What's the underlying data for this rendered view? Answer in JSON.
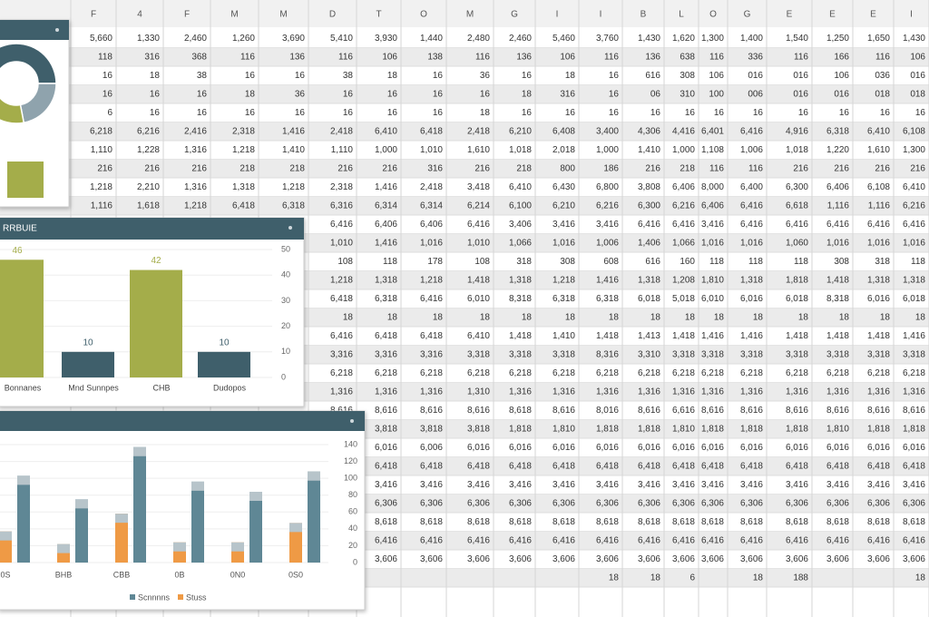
{
  "sheet": {
    "columns": [
      "F",
      "4",
      "F",
      "M",
      "M",
      "D",
      "T",
      "O",
      "M",
      "G",
      "I",
      "I",
      "B",
      "L",
      "O",
      "G",
      "E",
      "E",
      "E",
      "I"
    ],
    "rows": [
      [
        "5,660",
        "1,330",
        "2,460",
        "1,260",
        "3,690",
        "5,410",
        "3,930",
        "1,440",
        "2,480",
        "2,460",
        "5,460",
        "3,760",
        "1,430",
        "1,620",
        "1,300",
        "1,400",
        "1,540",
        "1,250",
        "1,650",
        "1,430"
      ],
      [
        "118",
        "316",
        "368",
        "116",
        "136",
        "116",
        "106",
        "138",
        "116",
        "136",
        "106",
        "116",
        "136",
        "638",
        "116",
        "336",
        "116",
        "166",
        "116",
        "106"
      ],
      [
        "16",
        "18",
        "38",
        "16",
        "16",
        "38",
        "18",
        "16",
        "36",
        "16",
        "18",
        "16",
        "616",
        "308",
        "106",
        "016",
        "016",
        "106",
        "036",
        "016"
      ],
      [
        "16",
        "16",
        "16",
        "18",
        "36",
        "16",
        "16",
        "16",
        "16",
        "18",
        "316",
        "16",
        "06",
        "310",
        "100",
        "006",
        "016",
        "016",
        "018",
        "018"
      ],
      [
        "6",
        "16",
        "16",
        "16",
        "16",
        "16",
        "16",
        "16",
        "18",
        "16",
        "16",
        "16",
        "16",
        "16",
        "16",
        "16",
        "16",
        "16",
        "16",
        "16"
      ],
      [
        "6,218",
        "6,216",
        "2,416",
        "2,318",
        "1,416",
        "2,418",
        "6,410",
        "6,418",
        "2,418",
        "6,210",
        "6,408",
        "3,400",
        "4,306",
        "4,416",
        "6,401",
        "6,416",
        "4,916",
        "6,318",
        "6,410",
        "6,108"
      ],
      [
        "1,110",
        "1,228",
        "1,316",
        "1,218",
        "1,410",
        "1,110",
        "1,000",
        "1,010",
        "1,610",
        "1,018",
        "2,018",
        "1,000",
        "1,410",
        "1,000",
        "1,108",
        "1,006",
        "1,018",
        "1,220",
        "1,610",
        "1,300"
      ],
      [
        "216",
        "216",
        "216",
        "218",
        "218",
        "216",
        "216",
        "316",
        "216",
        "218",
        "800",
        "186",
        "216",
        "218",
        "116",
        "116",
        "216",
        "216",
        "216",
        "216"
      ],
      [
        "1,218",
        "2,210",
        "1,316",
        "1,318",
        "1,218",
        "2,318",
        "1,416",
        "2,418",
        "3,418",
        "6,410",
        "6,430",
        "6,800",
        "3,808",
        "6,406",
        "8,000",
        "6,400",
        "6,300",
        "6,406",
        "6,108",
        "6,410"
      ],
      [
        "1,116",
        "1,618",
        "1,218",
        "6,418",
        "6,318",
        "6,316",
        "6,314",
        "6,314",
        "6,214",
        "6,100",
        "6,210",
        "6,216",
        "6,300",
        "6,216",
        "6,406",
        "6,416",
        "6,618",
        "1,116",
        "1,116",
        "6,216"
      ],
      [
        null,
        null,
        null,
        null,
        null,
        "6,416",
        "6,406",
        "6,406",
        "6,416",
        "3,406",
        "3,416",
        "3,416",
        "6,416",
        "6,416",
        "3,416",
        "6,416",
        "6,416",
        "6,416",
        "6,416",
        "6,416"
      ],
      [
        null,
        null,
        null,
        null,
        null,
        "1,010",
        "1,416",
        "1,016",
        "1,010",
        "1,066",
        "1,016",
        "1,006",
        "1,406",
        "1,066",
        "1,016",
        "1,016",
        "1,060",
        "1,016",
        "1,016",
        "1,016"
      ],
      [
        null,
        null,
        null,
        null,
        null,
        "108",
        "118",
        "178",
        "108",
        "318",
        "308",
        "608",
        "616",
        "160",
        "118",
        "118",
        "118",
        "308",
        "318",
        "118"
      ],
      [
        null,
        null,
        null,
        null,
        null,
        "1,218",
        "1,318",
        "1,218",
        "1,418",
        "1,318",
        "1,218",
        "1,416",
        "1,318",
        "1,208",
        "1,810",
        "1,318",
        "1,818",
        "1,418",
        "1,318",
        "1,318"
      ],
      [
        null,
        null,
        null,
        null,
        null,
        "6,418",
        "6,318",
        "6,416",
        "6,010",
        "8,318",
        "6,318",
        "6,318",
        "6,018",
        "5,018",
        "6,010",
        "6,016",
        "6,018",
        "8,318",
        "6,016",
        "6,018"
      ],
      [
        null,
        null,
        null,
        null,
        null,
        "18",
        "18",
        "18",
        "18",
        "18",
        "18",
        "18",
        "18",
        "18",
        "18",
        "18",
        "18",
        "18",
        "18",
        "18"
      ],
      [
        null,
        null,
        null,
        null,
        null,
        "6,416",
        "6,418",
        "6,418",
        "6,410",
        "1,418",
        "1,410",
        "1,418",
        "1,413",
        "1,418",
        "1,416",
        "1,416",
        "1,418",
        "1,418",
        "1,418",
        "1,416"
      ],
      [
        null,
        null,
        null,
        null,
        null,
        "3,316",
        "3,316",
        "3,316",
        "3,318",
        "3,318",
        "3,318",
        "8,316",
        "3,310",
        "3,318",
        "3,318",
        "3,318",
        "3,318",
        "3,318",
        "3,318",
        "3,318"
      ],
      [
        null,
        null,
        null,
        null,
        null,
        "6,218",
        "6,218",
        "6,218",
        "6,218",
        "6,218",
        "6,218",
        "6,218",
        "6,218",
        "6,218",
        "6,218",
        "6,218",
        "6,218",
        "6,218",
        "6,218",
        "6,218"
      ],
      [
        null,
        null,
        null,
        null,
        null,
        "1,316",
        "1,316",
        "1,316",
        "1,310",
        "1,316",
        "1,316",
        "1,316",
        "1,316",
        "1,316",
        "1,316",
        "1,316",
        "1,316",
        "1,316",
        "1,316",
        "1,316"
      ],
      [
        null,
        null,
        null,
        null,
        null,
        "8,616",
        "8,616",
        "8,616",
        "8,616",
        "8,618",
        "8,616",
        "8,016",
        "8,616",
        "6,616",
        "8,616",
        "8,616",
        "8,616",
        "8,616",
        "8,616",
        "8,616"
      ],
      [
        null,
        null,
        null,
        null,
        null,
        null,
        "3,818",
        "3,818",
        "3,818",
        "1,818",
        "1,810",
        "1,818",
        "1,818",
        "1,810",
        "1,818",
        "1,818",
        "1,818",
        "1,810",
        "1,818",
        "1,818"
      ],
      [
        null,
        null,
        null,
        null,
        null,
        null,
        "6,016",
        "6,006",
        "6,016",
        "6,016",
        "6,016",
        "6,016",
        "6,016",
        "6,016",
        "6,016",
        "6,016",
        "6,016",
        "6,016",
        "6,016",
        "6,016"
      ],
      [
        null,
        null,
        null,
        null,
        null,
        null,
        "6,418",
        "6,418",
        "6,418",
        "6,418",
        "6,418",
        "6,418",
        "6,418",
        "6,418",
        "6,418",
        "6,418",
        "6,418",
        "6,418",
        "6,418",
        "6,418"
      ],
      [
        null,
        null,
        null,
        null,
        null,
        null,
        "3,416",
        "3,416",
        "3,416",
        "3,416",
        "3,416",
        "3,416",
        "3,416",
        "3,416",
        "3,416",
        "3,416",
        "3,416",
        "3,416",
        "3,416",
        "3,416"
      ],
      [
        null,
        null,
        null,
        null,
        null,
        null,
        "6,306",
        "6,306",
        "6,306",
        "6,306",
        "6,306",
        "6,306",
        "6,306",
        "6,306",
        "6,306",
        "6,306",
        "6,306",
        "6,306",
        "6,306",
        "6,306"
      ],
      [
        null,
        null,
        null,
        null,
        null,
        null,
        "8,618",
        "8,618",
        "8,618",
        "8,618",
        "8,618",
        "8,618",
        "8,618",
        "8,618",
        "8,618",
        "8,618",
        "8,618",
        "8,618",
        "8,618",
        "8,618"
      ],
      [
        null,
        null,
        null,
        null,
        null,
        null,
        "6,416",
        "6,416",
        "6,416",
        "6,416",
        "6,416",
        "6,416",
        "6,416",
        "6,416",
        "6,416",
        "6,416",
        "6,416",
        "6,416",
        "6,416",
        "6,416"
      ],
      [
        null,
        null,
        null,
        null,
        null,
        null,
        "3,606",
        "3,606",
        "3,606",
        "3,606",
        "3,606",
        "3,606",
        "3,606",
        "3,606",
        "3,606",
        "3,606",
        "3,606",
        "3,606",
        "3,606",
        "3,606"
      ],
      [
        null,
        null,
        null,
        null,
        null,
        null,
        null,
        null,
        null,
        null,
        null,
        "18",
        "18",
        "6",
        null,
        "18",
        "188",
        null,
        null,
        "18"
      ]
    ]
  },
  "donut": {
    "type": "pie",
    "values": [
      50,
      22,
      28
    ],
    "colors": [
      "#3f5f6b",
      "#8fa3ad",
      "#a4ad4a"
    ]
  },
  "bar_chart": {
    "type": "bar",
    "title": "RRBUIE",
    "categories": [
      "Bonnanes",
      "Mnd Sunnpes",
      "CHB",
      "Dudopos"
    ],
    "values": [
      46,
      10,
      42,
      10
    ],
    "colors": [
      "#a4ad4a",
      "#3f5f6b",
      "#a4ad4a",
      "#3f5f6b"
    ],
    "ylim": [
      0,
      50
    ],
    "yticks": [
      0,
      10,
      20,
      30,
      40,
      50
    ],
    "grid": true
  },
  "stacked_chart": {
    "type": "bar",
    "categories": [
      "0S",
      "BHB",
      "CBB",
      "0B",
      "0N0",
      "0S0"
    ],
    "series": [
      {
        "name": "Scnnnns",
        "color": "#5f8795",
        "values": [
          103,
          75,
          137,
          96,
          84,
          108
        ]
      },
      {
        "name": "Stuss",
        "color": "#ef9a45",
        "values": [
          37,
          22,
          58,
          24,
          24,
          47
        ]
      }
    ],
    "ylim": [
      0,
      140
    ],
    "yticks": [
      0,
      20,
      40,
      60,
      80,
      100,
      120,
      140
    ],
    "grid": true
  }
}
